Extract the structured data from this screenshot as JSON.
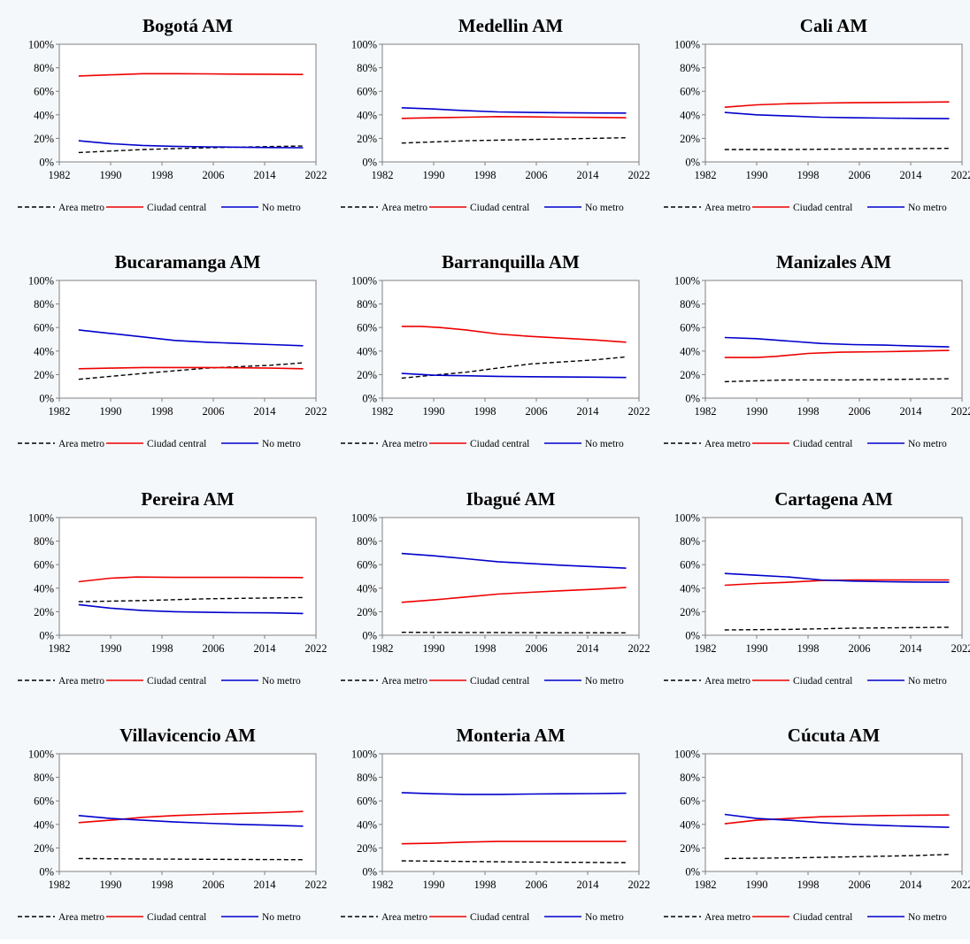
{
  "colors": {
    "Area metro": "#000000",
    "Ciudad central": "#ee0000",
    "No metro": "#0000cc"
  },
  "chart_data": [
    {
      "type": "line",
      "title": "Bogotá AM",
      "xticks": [
        1982,
        1990,
        1998,
        2006,
        2014,
        2022
      ],
      "yticks": [
        "0%",
        "20%",
        "40%",
        "60%",
        "80%",
        "100%"
      ],
      "xlim": [
        1982,
        2022
      ],
      "ylim": [
        0,
        100
      ],
      "legend_position": "bottom",
      "series": [
        {
          "name": "Area metro",
          "style": "dashed",
          "x": [
            1985,
            1995,
            2005,
            2020
          ],
          "y": [
            8,
            10.5,
            12,
            13.5
          ]
        },
        {
          "name": "Ciudad central",
          "style": "solid",
          "x": [
            1985,
            1990,
            1995,
            2000,
            2005,
            2010,
            2015,
            2020
          ],
          "y": [
            73,
            74,
            75,
            75,
            74.8,
            74.6,
            74.5,
            74.3
          ]
        },
        {
          "name": "No metro",
          "style": "solid",
          "x": [
            1985,
            1990,
            1995,
            2000,
            2005,
            2010,
            2015,
            2020
          ],
          "y": [
            18,
            15.5,
            14,
            13.2,
            12.8,
            12.5,
            12.2,
            12
          ]
        }
      ]
    },
    {
      "type": "line",
      "title": "Medellin AM",
      "xticks": [
        1982,
        1990,
        1998,
        2006,
        2014,
        2022
      ],
      "yticks": [
        "0%",
        "20%",
        "40%",
        "60%",
        "80%",
        "100%"
      ],
      "xlim": [
        1982,
        2022
      ],
      "ylim": [
        0,
        100
      ],
      "legend_position": "bottom",
      "series": [
        {
          "name": "Area metro",
          "style": "dashed",
          "x": [
            1985,
            1995,
            2005,
            2020
          ],
          "y": [
            16,
            18,
            19,
            20.5
          ]
        },
        {
          "name": "Ciudad central",
          "style": "solid",
          "x": [
            1985,
            1990,
            1995,
            2000,
            2005,
            2010,
            2015,
            2020
          ],
          "y": [
            37,
            37.5,
            38,
            38.5,
            38.3,
            38,
            37.8,
            37.5
          ]
        },
        {
          "name": "No metro",
          "style": "solid",
          "x": [
            1985,
            1990,
            1995,
            2000,
            2005,
            2010,
            2015,
            2020
          ],
          "y": [
            46,
            45,
            43.5,
            42.5,
            42,
            41.8,
            41.6,
            41.5
          ]
        }
      ]
    },
    {
      "type": "line",
      "title": "Cali AM",
      "xticks": [
        1982,
        1990,
        1998,
        2006,
        2014,
        2022
      ],
      "yticks": [
        "0%",
        "20%",
        "40%",
        "60%",
        "80%",
        "100%"
      ],
      "xlim": [
        1982,
        2022
      ],
      "ylim": [
        0,
        100
      ],
      "legend_position": "bottom",
      "series": [
        {
          "name": "Area metro",
          "style": "dashed",
          "x": [
            1985,
            1995,
            2005,
            2020
          ],
          "y": [
            10.5,
            10.5,
            11,
            11.5
          ]
        },
        {
          "name": "Ciudad central",
          "style": "solid",
          "x": [
            1985,
            1990,
            1995,
            2000,
            2005,
            2010,
            2015,
            2020
          ],
          "y": [
            46.5,
            48.5,
            49.5,
            50,
            50.3,
            50.5,
            50.7,
            51
          ]
        },
        {
          "name": "No metro",
          "style": "solid",
          "x": [
            1985,
            1990,
            1995,
            2000,
            2005,
            2010,
            2015,
            2020
          ],
          "y": [
            42,
            40,
            39,
            38,
            37.5,
            37.2,
            37,
            36.8
          ]
        }
      ]
    },
    {
      "type": "line",
      "title": "Bucaramanga AM",
      "xticks": [
        1982,
        1990,
        1998,
        2006,
        2014,
        2022
      ],
      "yticks": [
        "0%",
        "20%",
        "40%",
        "60%",
        "80%",
        "100%"
      ],
      "xlim": [
        1982,
        2022
      ],
      "ylim": [
        0,
        100
      ],
      "legend_position": "bottom",
      "series": [
        {
          "name": "Area metro",
          "style": "dashed",
          "x": [
            1985,
            1995,
            2005,
            2015,
            2020
          ],
          "y": [
            16,
            21,
            25.5,
            28,
            30
          ]
        },
        {
          "name": "Ciudad central",
          "style": "solid",
          "x": [
            1985,
            1990,
            1995,
            2000,
            2005,
            2010,
            2015,
            2020
          ],
          "y": [
            25,
            25.5,
            26,
            26,
            26,
            25.8,
            25.5,
            25
          ]
        },
        {
          "name": "No metro",
          "style": "solid",
          "x": [
            1985,
            1990,
            1995,
            2000,
            2005,
            2010,
            2015,
            2020
          ],
          "y": [
            58,
            55,
            52,
            49,
            47.5,
            46.5,
            45.5,
            44.5
          ]
        }
      ]
    },
    {
      "type": "line",
      "title": "Barranquilla AM",
      "xticks": [
        1982,
        1990,
        1998,
        2006,
        2014,
        2022
      ],
      "yticks": [
        "0%",
        "20%",
        "40%",
        "60%",
        "80%",
        "100%"
      ],
      "xlim": [
        1982,
        2022
      ],
      "ylim": [
        0,
        100
      ],
      "legend_position": "bottom",
      "series": [
        {
          "name": "Area metro",
          "style": "dashed",
          "x": [
            1985,
            1995,
            2005,
            2015,
            2020
          ],
          "y": [
            17,
            22,
            29,
            32.5,
            35
          ]
        },
        {
          "name": "Ciudad central",
          "style": "solid",
          "x": [
            1985,
            1988,
            1991,
            1995,
            2000,
            2005,
            2010,
            2015,
            2020
          ],
          "y": [
            61,
            61,
            60,
            58,
            54.5,
            52.5,
            51,
            49.5,
            47.5
          ]
        },
        {
          "name": "No metro",
          "style": "solid",
          "x": [
            1985,
            1990,
            1995,
            2000,
            2005,
            2010,
            2015,
            2020
          ],
          "y": [
            21,
            19.5,
            19,
            18.5,
            18.2,
            18,
            17.8,
            17.5
          ]
        }
      ]
    },
    {
      "type": "line",
      "title": "Manizales AM",
      "xticks": [
        1982,
        1990,
        1998,
        2006,
        2014,
        2022
      ],
      "yticks": [
        "0%",
        "20%",
        "40%",
        "60%",
        "80%",
        "100%"
      ],
      "xlim": [
        1982,
        2022
      ],
      "ylim": [
        0,
        100
      ],
      "legend_position": "bottom",
      "series": [
        {
          "name": "Area metro",
          "style": "dashed",
          "x": [
            1985,
            1995,
            2005,
            2020
          ],
          "y": [
            14,
            15.5,
            15.5,
            16.5
          ]
        },
        {
          "name": "Ciudad central",
          "style": "solid",
          "x": [
            1985,
            1990,
            1993,
            1998,
            2003,
            2010,
            2015,
            2020
          ],
          "y": [
            34.5,
            34.5,
            35.5,
            38,
            39,
            39.5,
            40,
            40.5
          ]
        },
        {
          "name": "No metro",
          "style": "solid",
          "x": [
            1985,
            1990,
            1995,
            2000,
            2005,
            2010,
            2015,
            2020
          ],
          "y": [
            51.5,
            50.5,
            48.5,
            46.5,
            45.5,
            45,
            44.2,
            43.5
          ]
        }
      ]
    },
    {
      "type": "line",
      "title": "Pereira AM",
      "xticks": [
        1982,
        1990,
        1998,
        2006,
        2014,
        2022
      ],
      "yticks": [
        "0%",
        "20%",
        "40%",
        "60%",
        "80%",
        "100%"
      ],
      "xlim": [
        1982,
        2022
      ],
      "ylim": [
        0,
        100
      ],
      "legend_position": "bottom",
      "series": [
        {
          "name": "Area metro",
          "style": "dashed",
          "x": [
            1985,
            1995,
            2005,
            2020
          ],
          "y": [
            28.5,
            29.5,
            31,
            32
          ]
        },
        {
          "name": "Ciudad central",
          "style": "solid",
          "x": [
            1985,
            1990,
            1994,
            2000,
            2005,
            2010,
            2015,
            2020
          ],
          "y": [
            45.5,
            48.5,
            49.5,
            49.2,
            49.2,
            49.2,
            49.1,
            49
          ]
        },
        {
          "name": "No metro",
          "style": "solid",
          "x": [
            1985,
            1990,
            1995,
            2000,
            2005,
            2010,
            2015,
            2020
          ],
          "y": [
            26,
            23,
            21,
            20,
            19.5,
            19.2,
            19,
            18.5
          ]
        }
      ]
    },
    {
      "type": "line",
      "title": "Ibagué AM",
      "xticks": [
        1982,
        1990,
        1998,
        2006,
        2014,
        2022
      ],
      "yticks": [
        "0%",
        "20%",
        "40%",
        "60%",
        "80%",
        "100%"
      ],
      "xlim": [
        1982,
        2022
      ],
      "ylim": [
        0,
        100
      ],
      "legend_position": "bottom",
      "series": [
        {
          "name": "Area metro",
          "style": "dashed",
          "x": [
            1985,
            1995,
            2005,
            2020
          ],
          "y": [
            2.5,
            2.3,
            2.2,
            2
          ]
        },
        {
          "name": "Ciudad central",
          "style": "solid",
          "x": [
            1985,
            1990,
            1995,
            2000,
            2005,
            2010,
            2015,
            2020
          ],
          "y": [
            28,
            30,
            32.5,
            35,
            36.5,
            37.8,
            39,
            40.5
          ]
        },
        {
          "name": "No metro",
          "style": "solid",
          "x": [
            1985,
            1990,
            1995,
            2000,
            2005,
            2010,
            2015,
            2020
          ],
          "y": [
            69.5,
            67.5,
            65,
            62.5,
            61,
            59.5,
            58.2,
            57
          ]
        }
      ]
    },
    {
      "type": "line",
      "title": "Cartagena AM",
      "xticks": [
        1982,
        1990,
        1998,
        2006,
        2014,
        2022
      ],
      "yticks": [
        "0%",
        "20%",
        "40%",
        "60%",
        "80%",
        "100%"
      ],
      "xlim": [
        1982,
        2022
      ],
      "ylim": [
        0,
        100
      ],
      "legend_position": "bottom",
      "series": [
        {
          "name": "Area metro",
          "style": "dashed",
          "x": [
            1985,
            1995,
            2005,
            2020
          ],
          "y": [
            4.5,
            5,
            6,
            6.8
          ]
        },
        {
          "name": "Ciudad central",
          "style": "solid",
          "x": [
            1985,
            1990,
            1995,
            2000,
            2005,
            2010,
            2015,
            2020
          ],
          "y": [
            42.5,
            44,
            45,
            46.5,
            47,
            47,
            47,
            47
          ]
        },
        {
          "name": "No metro",
          "style": "solid",
          "x": [
            1985,
            1990,
            1995,
            2000,
            2005,
            2010,
            2015,
            2020
          ],
          "y": [
            52.5,
            51,
            49.5,
            47,
            46,
            45.5,
            45.2,
            45
          ]
        }
      ]
    },
    {
      "type": "line",
      "title": "Villavicencio AM",
      "xticks": [
        1982,
        1990,
        1998,
        2006,
        2014,
        2022
      ],
      "yticks": [
        "0%",
        "20%",
        "40%",
        "60%",
        "80%",
        "100%"
      ],
      "xlim": [
        1982,
        2022
      ],
      "ylim": [
        0,
        100
      ],
      "legend_position": "bottom",
      "series": [
        {
          "name": "Area metro",
          "style": "dashed",
          "x": [
            1985,
            1995,
            2005,
            2020
          ],
          "y": [
            11,
            10.6,
            10.3,
            10
          ]
        },
        {
          "name": "Ciudad central",
          "style": "solid",
          "x": [
            1985,
            1990,
            1995,
            2000,
            2005,
            2010,
            2015,
            2020
          ],
          "y": [
            41.5,
            43.5,
            46,
            47.5,
            48.5,
            49.3,
            50,
            51
          ]
        },
        {
          "name": "No metro",
          "style": "solid",
          "x": [
            1985,
            1990,
            1995,
            2000,
            2005,
            2010,
            2015,
            2020
          ],
          "y": [
            47.5,
            45,
            43.5,
            42,
            41,
            40,
            39.3,
            38.5
          ]
        }
      ]
    },
    {
      "type": "line",
      "title": "Monteria AM",
      "xticks": [
        1982,
        1990,
        1998,
        2006,
        2014,
        2022
      ],
      "yticks": [
        "0%",
        "20%",
        "40%",
        "60%",
        "80%",
        "100%"
      ],
      "xlim": [
        1982,
        2022
      ],
      "ylim": [
        0,
        100
      ],
      "legend_position": "bottom",
      "series": [
        {
          "name": "Area metro",
          "style": "dashed",
          "x": [
            1985,
            1995,
            2005,
            2020
          ],
          "y": [
            9,
            8.5,
            8,
            7.5
          ]
        },
        {
          "name": "Ciudad central",
          "style": "solid",
          "x": [
            1985,
            1990,
            1995,
            2000,
            2005,
            2010,
            2015,
            2020
          ],
          "y": [
            23.5,
            24,
            25,
            25.5,
            25.5,
            25.5,
            25.5,
            25.5
          ]
        },
        {
          "name": "No metro",
          "style": "solid",
          "x": [
            1985,
            1990,
            1995,
            2000,
            2005,
            2010,
            2015,
            2020
          ],
          "y": [
            67,
            66,
            65.5,
            65.5,
            65.8,
            66,
            66.2,
            66.5
          ]
        }
      ]
    },
    {
      "type": "line",
      "title": "Cúcuta AM",
      "xticks": [
        1982,
        1990,
        1998,
        2006,
        2014,
        2022
      ],
      "yticks": [
        "0%",
        "20%",
        "40%",
        "60%",
        "80%",
        "100%"
      ],
      "xlim": [
        1982,
        2022
      ],
      "ylim": [
        0,
        100
      ],
      "legend_position": "bottom",
      "series": [
        {
          "name": "Area metro",
          "style": "dashed",
          "x": [
            1985,
            1995,
            2005,
            2015,
            2020
          ],
          "y": [
            11,
            11.5,
            12.5,
            13.5,
            14.5
          ]
        },
        {
          "name": "Ciudad central",
          "style": "solid",
          "x": [
            1985,
            1990,
            1995,
            2000,
            2005,
            2010,
            2015,
            2020
          ],
          "y": [
            40.5,
            43.5,
            45,
            46.5,
            47,
            47.5,
            47.8,
            48
          ]
        },
        {
          "name": "No metro",
          "style": "solid",
          "x": [
            1985,
            1990,
            1995,
            2000,
            2005,
            2010,
            2015,
            2020
          ],
          "y": [
            48.5,
            45,
            43.5,
            41.5,
            40,
            39,
            38.2,
            37.5
          ]
        }
      ]
    }
  ]
}
